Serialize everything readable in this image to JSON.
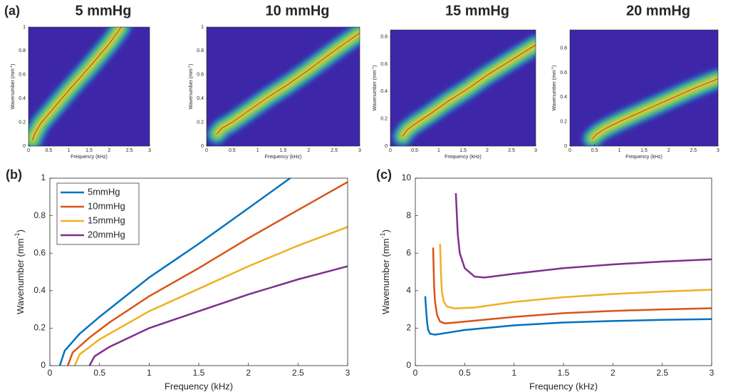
{
  "chart_data": [
    {
      "type": "heatmap",
      "panel_label": "(a)",
      "title": "5 mmHg",
      "xlabel": "Frequency (kHz)",
      "ylabel": [
        "Wavenumber (mm",
        "-1",
        ")"
      ],
      "background": "#3e26a8",
      "xlim": [
        0,
        3
      ],
      "ylim": [
        0,
        1
      ],
      "xticks": [
        0,
        0.5,
        1,
        1.5,
        2,
        2.5,
        3
      ],
      "yticks": [
        0,
        0.2,
        0.4,
        0.6,
        0.8,
        1
      ],
      "series": [
        {
          "color": "#e8262a",
          "x": [
            0.1,
            0.15,
            0.3,
            0.5,
            1,
            1.5,
            2,
            2.3
          ],
          "values": [
            0.05,
            0.1,
            0.19,
            0.27,
            0.47,
            0.66,
            0.86,
            1.0
          ]
        }
      ]
    },
    {
      "type": "heatmap",
      "title": "10 mmHg",
      "xlabel": "Frequency (kHz)",
      "ylabel": [
        "Wavenumber (mm",
        "-1",
        ")"
      ],
      "background": "#3e26a8",
      "xlim": [
        0,
        3
      ],
      "ylim": [
        0,
        1
      ],
      "xticks": [
        0,
        0.5,
        1,
        1.5,
        2,
        2.5,
        3
      ],
      "yticks": [
        0,
        0.2,
        0.4,
        0.6,
        0.8,
        1
      ],
      "series": [
        {
          "color": "#e8262a",
          "x": [
            0.2,
            0.3,
            0.5,
            0.8,
            1.2,
            1.6,
            2,
            2.5,
            3
          ],
          "values": [
            0.1,
            0.15,
            0.2,
            0.29,
            0.41,
            0.52,
            0.64,
            0.8,
            0.95
          ]
        }
      ]
    },
    {
      "type": "heatmap",
      "title": "15 mmHg",
      "xlabel": "Frequency (kHz)",
      "ylabel": [
        "Wavenumber (mm",
        "-1",
        ")"
      ],
      "background": "#3e26a8",
      "xlim": [
        0,
        3
      ],
      "ylim": [
        0,
        0.85
      ],
      "xticks": [
        0,
        0.5,
        1,
        1.5,
        2,
        2.5,
        3
      ],
      "yticks": [
        0,
        0.2,
        0.4,
        0.6,
        0.8
      ],
      "series": [
        {
          "color": "#e8262a",
          "x": [
            0.25,
            0.35,
            0.5,
            0.8,
            1.2,
            1.6,
            2,
            2.5,
            3
          ],
          "values": [
            0.07,
            0.12,
            0.16,
            0.23,
            0.33,
            0.42,
            0.52,
            0.63,
            0.74
          ]
        }
      ]
    },
    {
      "type": "heatmap",
      "title": "20 mmHg",
      "xlabel": "Frequency (kHz)",
      "ylabel": [
        "Wavenumber (mm",
        "-1",
        ")"
      ],
      "background": "#3e26a8",
      "xlim": [
        0,
        3
      ],
      "ylim": [
        0,
        0.95
      ],
      "xticks": [
        0,
        0.5,
        1,
        1.5,
        2,
        2.5,
        3
      ],
      "yticks": [
        0,
        0.2,
        0.4,
        0.6,
        0.8
      ],
      "series": [
        {
          "color": "#e8262a",
          "x": [
            0.45,
            0.55,
            0.7,
            1,
            1.5,
            2,
            2.5,
            3
          ],
          "values": [
            0.06,
            0.1,
            0.14,
            0.2,
            0.29,
            0.38,
            0.47,
            0.55
          ]
        }
      ]
    },
    {
      "type": "line",
      "panel_label": "(b)",
      "xlabel": "Frequency (kHz)",
      "ylabel": [
        "Wavenumber (mm",
        "-1",
        ")"
      ],
      "legend": "upper left",
      "xlim": [
        0,
        3
      ],
      "ylim": [
        0,
        1
      ],
      "xticks": [
        0,
        0.5,
        1,
        1.5,
        2,
        2.5,
        3
      ],
      "yticks": [
        0,
        0.2,
        0.4,
        0.6,
        0.8,
        1
      ],
      "series": [
        {
          "name": "5mmHg",
          "color": "#0072bd",
          "x": [
            0.1,
            0.15,
            0.3,
            0.5,
            1,
            1.5,
            2,
            2.42
          ],
          "values": [
            0,
            0.08,
            0.17,
            0.26,
            0.47,
            0.65,
            0.84,
            1.0
          ]
        },
        {
          "name": "10mmHg",
          "color": "#d95319",
          "x": [
            0.18,
            0.23,
            0.4,
            0.6,
            1,
            1.5,
            2,
            2.5,
            3
          ],
          "values": [
            0,
            0.07,
            0.15,
            0.23,
            0.37,
            0.52,
            0.68,
            0.83,
            0.98
          ]
        },
        {
          "name": "15mmHg",
          "color": "#edb120",
          "x": [
            0.25,
            0.3,
            0.5,
            1,
            1.5,
            2,
            2.5,
            3
          ],
          "values": [
            0,
            0.06,
            0.14,
            0.29,
            0.41,
            0.53,
            0.64,
            0.74
          ]
        },
        {
          "name": "20mmHg",
          "color": "#7e2f8e",
          "x": [
            0.4,
            0.45,
            0.6,
            1,
            1.5,
            2,
            2.5,
            3
          ],
          "values": [
            0,
            0.05,
            0.1,
            0.2,
            0.29,
            0.38,
            0.46,
            0.53
          ]
        }
      ]
    },
    {
      "type": "line",
      "panel_label": "(c)",
      "xlabel": "Frequency (kHz)",
      "ylabel": [
        "Wavenumber (mm",
        "-1",
        ")"
      ],
      "xlim": [
        0,
        3
      ],
      "ylim": [
        0,
        10
      ],
      "xticks": [
        0,
        0.5,
        1,
        1.5,
        2,
        2.5,
        3
      ],
      "yticks": [
        0,
        2,
        4,
        6,
        8,
        10
      ],
      "series": [
        {
          "color": "#0072bd",
          "x": [
            0.1,
            0.11,
            0.12,
            0.13,
            0.15,
            0.2,
            0.5,
            1,
            1.5,
            2,
            2.5,
            3
          ],
          "values": [
            3.7,
            2.9,
            2.3,
            1.9,
            1.7,
            1.65,
            1.9,
            2.15,
            2.3,
            2.38,
            2.44,
            2.48
          ]
        },
        {
          "color": "#d95319",
          "x": [
            0.18,
            0.19,
            0.2,
            0.22,
            0.25,
            0.3,
            0.5,
            1,
            1.5,
            2,
            2.5,
            3
          ],
          "values": [
            6.3,
            4.3,
            3.4,
            2.7,
            2.35,
            2.25,
            2.35,
            2.6,
            2.8,
            2.92,
            3.0,
            3.06
          ]
        },
        {
          "color": "#edb120",
          "x": [
            0.25,
            0.26,
            0.27,
            0.29,
            0.32,
            0.4,
            0.6,
            1,
            1.5,
            2,
            2.5,
            3
          ],
          "values": [
            6.5,
            4.8,
            3.9,
            3.4,
            3.15,
            3.05,
            3.1,
            3.4,
            3.65,
            3.82,
            3.95,
            4.05
          ]
        },
        {
          "color": "#7e2f8e",
          "x": [
            0.41,
            0.42,
            0.43,
            0.45,
            0.5,
            0.6,
            0.7,
            1,
            1.5,
            2,
            2.5,
            3
          ],
          "values": [
            9.2,
            8.1,
            7.0,
            6.0,
            5.2,
            4.75,
            4.7,
            4.9,
            5.2,
            5.4,
            5.55,
            5.67
          ]
        }
      ]
    }
  ]
}
